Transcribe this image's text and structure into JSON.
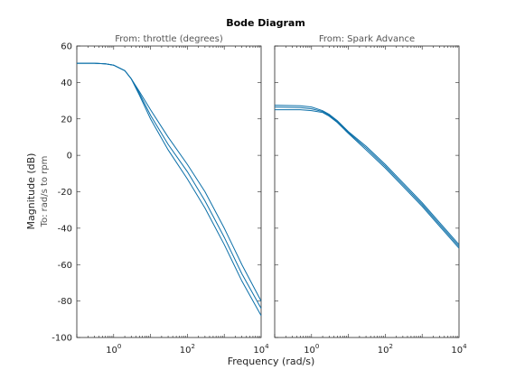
{
  "chart_data": {
    "type": "line",
    "title": "Bode Diagram",
    "xlabel": "Frequency  (rad/s)",
    "ylabel": "Magnitude (dB)",
    "ylabel_sub": "To: rad/s to rpm",
    "xscale": "log",
    "ylim": [
      -100,
      60
    ],
    "yticks": [
      60,
      40,
      20,
      0,
      -20,
      -40,
      -60,
      -80,
      -100
    ],
    "grid": false,
    "series_color": "#0b6fa8",
    "panels": [
      {
        "subtitle": "From: throttle (degrees)",
        "xlim": [
          0.1,
          10000
        ],
        "xticks": [
          {
            "value": 1,
            "label": "10^0"
          },
          {
            "value": 100,
            "label": "10^2"
          },
          {
            "value": 10000,
            "label": "10^4"
          }
        ],
        "series": [
          {
            "x": [
              0.1,
              0.3,
              0.6,
              1,
              2,
              3,
              5,
              10,
              30,
              100,
              300,
              1000,
              3000,
              10000
            ],
            "y": [
              50.5,
              50.5,
              50.2,
              49.5,
              46.5,
              42,
              35,
              25,
              10,
              -5,
              -20,
              -40,
              -60,
              -80
            ]
          },
          {
            "x": [
              0.1,
              0.3,
              0.6,
              1,
              2,
              3,
              5,
              10,
              30,
              100,
              300,
              1000,
              3000,
              10000
            ],
            "y": [
              50.5,
              50.5,
              50.2,
              49.5,
              46.5,
              42,
              34,
              22,
              6,
              -9,
              -25,
              -45,
              -65,
              -84
            ]
          },
          {
            "x": [
              0.1,
              0.3,
              0.6,
              1,
              2,
              3,
              5,
              10,
              30,
              100,
              300,
              1000,
              3000,
              10000
            ],
            "y": [
              50.5,
              50.5,
              50.2,
              49.5,
              46.5,
              42,
              33,
              20,
              3,
              -13,
              -29,
              -49,
              -69,
              -88
            ]
          }
        ]
      },
      {
        "subtitle": "From: Spark Advance",
        "xlim": [
          0.1,
          10000
        ],
        "xticks": [
          {
            "value": 1,
            "label": "10^0"
          },
          {
            "value": 100,
            "label": "10^2"
          },
          {
            "value": 10000,
            "label": "10^4"
          }
        ],
        "series": [
          {
            "x": [
              0.1,
              0.5,
              1,
              2,
              3,
              5,
              10,
              30,
              100,
              300,
              1000,
              3000,
              10000
            ],
            "y": [
              27.5,
              27.2,
              26.5,
              24.5,
              22.5,
              19,
              13,
              5,
              -5,
              -15,
              -26,
              -37,
              -49
            ]
          },
          {
            "x": [
              0.1,
              0.5,
              1,
              2,
              3,
              5,
              10,
              30,
              100,
              300,
              1000,
              3000,
              10000
            ],
            "y": [
              26.5,
              26.2,
              25.5,
              24,
              22,
              18.5,
              12.5,
              4,
              -6,
              -16,
              -27,
              -38,
              -50
            ]
          },
          {
            "x": [
              0.1,
              0.5,
              1,
              2,
              3,
              5,
              10,
              30,
              100,
              300,
              1000,
              3000,
              10000
            ],
            "y": [
              25,
              25,
              24.5,
              23.5,
              21.5,
              18,
              12,
              3,
              -7,
              -17,
              -28,
              -39,
              -51
            ]
          }
        ]
      }
    ]
  }
}
